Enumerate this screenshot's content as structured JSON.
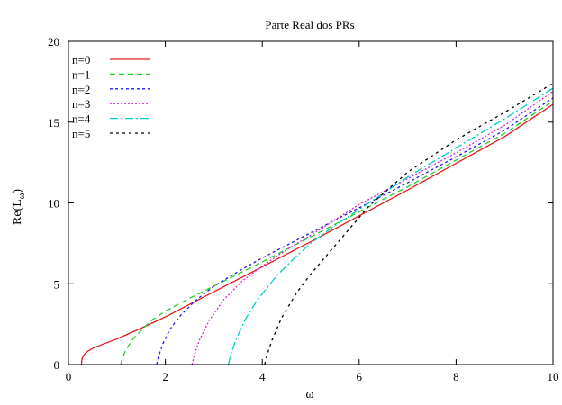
{
  "chart_data": {
    "type": "line",
    "title": "Parte Real dos PRs",
    "xlabel": "ω",
    "ylabel_main": "Re(L",
    "ylabel_sub": "ω",
    "ylabel_close": ")",
    "xlim": [
      0,
      10
    ],
    "ylim": [
      0,
      20
    ],
    "xticks": [
      "0",
      "2",
      "4",
      "6",
      "8",
      "10"
    ],
    "yticks": [
      "0",
      "5",
      "10",
      "15",
      "20"
    ],
    "legend_position": "top-left",
    "series": [
      {
        "name": "n=0",
        "color": "#e41a1c",
        "dash": "",
        "points": [
          [
            0.268,
            0
          ],
          [
            0.28,
            0.35
          ],
          [
            0.32,
            0.6
          ],
          [
            0.4,
            0.83
          ],
          [
            0.5,
            1.0
          ],
          [
            0.7,
            1.25
          ],
          [
            1,
            1.58
          ],
          [
            1.5,
            2.25
          ],
          [
            2,
            2.95
          ],
          [
            3,
            4.5
          ],
          [
            4,
            6.05
          ],
          [
            5,
            7.6
          ],
          [
            6,
            9.2
          ],
          [
            7,
            10.8
          ],
          [
            8,
            12.45
          ],
          [
            9,
            14.1
          ],
          [
            10,
            16.1
          ]
        ]
      },
      {
        "name": "n=1",
        "color": "#22cc22",
        "dash": "6,4",
        "points": [
          [
            1.08,
            0
          ],
          [
            1.12,
            0.45
          ],
          [
            1.2,
            1.0
          ],
          [
            1.35,
            1.65
          ],
          [
            1.5,
            2.1
          ],
          [
            1.7,
            2.7
          ],
          [
            2,
            3.3
          ],
          [
            2.5,
            4.1
          ],
          [
            3,
            4.85
          ],
          [
            4,
            6.35
          ],
          [
            5,
            7.9
          ],
          [
            6,
            9.45
          ],
          [
            7,
            11.0
          ],
          [
            8,
            12.65
          ],
          [
            9,
            14.3
          ],
          [
            10,
            16.3
          ]
        ]
      },
      {
        "name": "n=2",
        "color": "#1a1aee",
        "dash": "3,3",
        "points": [
          [
            1.82,
            0
          ],
          [
            1.86,
            0.5
          ],
          [
            1.95,
            1.3
          ],
          [
            2.1,
            2.2
          ],
          [
            2.3,
            3.0
          ],
          [
            2.6,
            3.9
          ],
          [
            3,
            4.85
          ],
          [
            3.5,
            5.75
          ],
          [
            4,
            6.6
          ],
          [
            5,
            8.15
          ],
          [
            6,
            9.7
          ],
          [
            7,
            11.25
          ],
          [
            8,
            12.85
          ],
          [
            9,
            14.5
          ],
          [
            10,
            16.5
          ]
        ]
      },
      {
        "name": "n=3",
        "color": "#dd22dd",
        "dash": "2,2",
        "points": [
          [
            2.55,
            0
          ],
          [
            2.6,
            0.6
          ],
          [
            2.7,
            1.5
          ],
          [
            2.9,
            2.7
          ],
          [
            3.2,
            4.0
          ],
          [
            3.6,
            5.2
          ],
          [
            4,
            6.1
          ],
          [
            4.5,
            7.1
          ],
          [
            5,
            8.0
          ],
          [
            6,
            9.9
          ],
          [
            7,
            11.5
          ],
          [
            8,
            13.1
          ],
          [
            9,
            14.8
          ],
          [
            10,
            16.9
          ]
        ]
      },
      {
        "name": "n=4",
        "color": "#00cccc",
        "dash": "9,3,2,3",
        "points": [
          [
            3.3,
            0
          ],
          [
            3.35,
            0.6
          ],
          [
            3.45,
            1.5
          ],
          [
            3.65,
            2.8
          ],
          [
            3.9,
            4.0
          ],
          [
            4.3,
            5.5
          ],
          [
            4.7,
            6.7
          ],
          [
            5,
            7.5
          ],
          [
            5.5,
            8.6
          ],
          [
            6,
            9.6
          ],
          [
            7,
            11.6
          ],
          [
            8,
            13.4
          ],
          [
            9,
            15.2
          ],
          [
            10,
            17.1
          ]
        ]
      },
      {
        "name": "n=5",
        "color": "#000000",
        "dash": "3,4",
        "points": [
          [
            4.05,
            0
          ],
          [
            4.1,
            0.6
          ],
          [
            4.2,
            1.5
          ],
          [
            4.4,
            2.9
          ],
          [
            4.7,
            4.4
          ],
          [
            5,
            5.6
          ],
          [
            5.4,
            7.0
          ],
          [
            5.8,
            8.4
          ],
          [
            6.2,
            9.8
          ],
          [
            7,
            11.9
          ],
          [
            8,
            13.9
          ],
          [
            9,
            15.6
          ],
          [
            10,
            17.4
          ]
        ]
      }
    ]
  }
}
